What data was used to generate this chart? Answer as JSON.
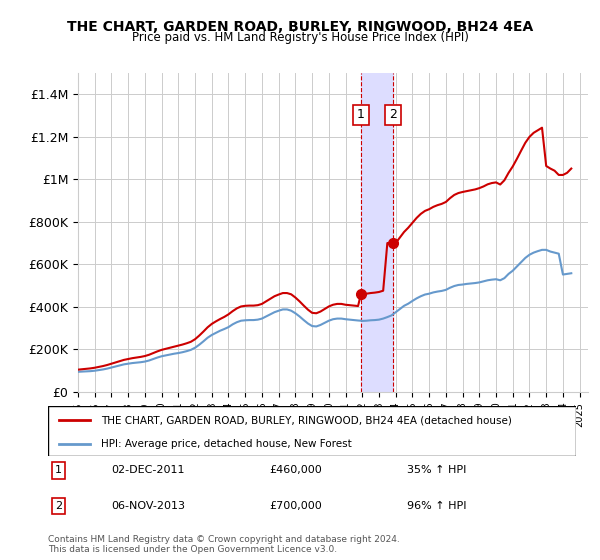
{
  "title": "THE CHART, GARDEN ROAD, BURLEY, RINGWOOD, BH24 4EA",
  "subtitle": "Price paid vs. HM Land Registry's House Price Index (HPI)",
  "ylim": [
    0,
    1500000
  ],
  "yticks": [
    0,
    200000,
    400000,
    600000,
    800000,
    1000000,
    1200000,
    1400000
  ],
  "ytick_labels": [
    "£0",
    "£200K",
    "£400K",
    "£600K",
    "£800K",
    "£1M",
    "£1.2M",
    "£1.4M"
  ],
  "x_start_year": 1995,
  "x_end_year": 2025,
  "sale_dates": [
    "2011-12-02",
    "2013-11-06"
  ],
  "sale_prices": [
    460000,
    700000
  ],
  "sale_labels": [
    "1",
    "2"
  ],
  "legend_red": "THE CHART, GARDEN ROAD, BURLEY, RINGWOOD, BH24 4EA (detached house)",
  "legend_blue": "HPI: Average price, detached house, New Forest",
  "annotation_1": "02-DEC-2011",
  "annotation_1_price": "£460,000",
  "annotation_1_hpi": "35% ↑ HPI",
  "annotation_2": "06-NOV-2013",
  "annotation_2_price": "£700,000",
  "annotation_2_hpi": "96% ↑ HPI",
  "footnote": "Contains HM Land Registry data © Crown copyright and database right 2024.\nThis data is licensed under the Open Government Licence v3.0.",
  "red_line_color": "#cc0000",
  "blue_line_color": "#6699cc",
  "highlight_color": "#ddddff",
  "grid_color": "#cccccc",
  "hpi_data_x": [
    1995.0,
    1995.25,
    1995.5,
    1995.75,
    1996.0,
    1996.25,
    1996.5,
    1996.75,
    1997.0,
    1997.25,
    1997.5,
    1997.75,
    1998.0,
    1998.25,
    1998.5,
    1998.75,
    1999.0,
    1999.25,
    1999.5,
    1999.75,
    2000.0,
    2000.25,
    2000.5,
    2000.75,
    2001.0,
    2001.25,
    2001.5,
    2001.75,
    2002.0,
    2002.25,
    2002.5,
    2002.75,
    2003.0,
    2003.25,
    2003.5,
    2003.75,
    2004.0,
    2004.25,
    2004.5,
    2004.75,
    2005.0,
    2005.25,
    2005.5,
    2005.75,
    2006.0,
    2006.25,
    2006.5,
    2006.75,
    2007.0,
    2007.25,
    2007.5,
    2007.75,
    2008.0,
    2008.25,
    2008.5,
    2008.75,
    2009.0,
    2009.25,
    2009.5,
    2009.75,
    2010.0,
    2010.25,
    2010.5,
    2010.75,
    2011.0,
    2011.25,
    2011.5,
    2011.75,
    2011.917,
    2012.0,
    2012.25,
    2012.5,
    2012.75,
    2013.0,
    2013.25,
    2013.5,
    2013.75,
    2013.833,
    2014.0,
    2014.25,
    2014.5,
    2014.75,
    2015.0,
    2015.25,
    2015.5,
    2015.75,
    2016.0,
    2016.25,
    2016.5,
    2016.75,
    2017.0,
    2017.25,
    2017.5,
    2017.75,
    2018.0,
    2018.25,
    2018.5,
    2018.75,
    2019.0,
    2019.25,
    2019.5,
    2019.75,
    2020.0,
    2020.25,
    2020.5,
    2020.75,
    2021.0,
    2021.25,
    2021.5,
    2021.75,
    2022.0,
    2022.25,
    2022.5,
    2022.75,
    2023.0,
    2023.25,
    2023.5,
    2023.75,
    2024.0,
    2024.25,
    2024.5
  ],
  "hpi_data_y": [
    95000,
    96000,
    97000,
    98000,
    100000,
    103000,
    106000,
    110000,
    115000,
    120000,
    125000,
    130000,
    133000,
    136000,
    138000,
    140000,
    143000,
    148000,
    155000,
    162000,
    168000,
    172000,
    176000,
    180000,
    183000,
    187000,
    192000,
    198000,
    208000,
    222000,
    238000,
    255000,
    268000,
    278000,
    288000,
    296000,
    305000,
    318000,
    328000,
    335000,
    337000,
    338000,
    338000,
    340000,
    345000,
    355000,
    365000,
    375000,
    382000,
    388000,
    388000,
    382000,
    370000,
    355000,
    338000,
    322000,
    310000,
    308000,
    315000,
    325000,
    335000,
    342000,
    345000,
    345000,
    342000,
    340000,
    338000,
    336000,
    335000,
    334000,
    335000,
    337000,
    338000,
    340000,
    345000,
    352000,
    360000,
    365000,
    375000,
    390000,
    405000,
    415000,
    428000,
    440000,
    450000,
    458000,
    462000,
    468000,
    472000,
    475000,
    480000,
    490000,
    498000,
    503000,
    505000,
    508000,
    510000,
    512000,
    515000,
    520000,
    525000,
    528000,
    530000,
    525000,
    535000,
    555000,
    570000,
    590000,
    610000,
    630000,
    645000,
    655000,
    662000,
    668000,
    668000,
    660000,
    655000,
    650000,
    552000,
    555000,
    558000
  ],
  "red_line_x": [
    1995.0,
    1995.25,
    1995.5,
    1995.75,
    1996.0,
    1996.25,
    1996.5,
    1996.75,
    1997.0,
    1997.25,
    1997.5,
    1997.75,
    1998.0,
    1998.25,
    1998.5,
    1998.75,
    1999.0,
    1999.25,
    1999.5,
    1999.75,
    2000.0,
    2000.25,
    2000.5,
    2000.75,
    2001.0,
    2001.25,
    2001.5,
    2001.75,
    2002.0,
    2002.25,
    2002.5,
    2002.75,
    2003.0,
    2003.25,
    2003.5,
    2003.75,
    2004.0,
    2004.25,
    2004.5,
    2004.75,
    2005.0,
    2005.25,
    2005.5,
    2005.75,
    2006.0,
    2006.25,
    2006.5,
    2006.75,
    2007.0,
    2007.25,
    2007.5,
    2007.75,
    2008.0,
    2008.25,
    2008.5,
    2008.75,
    2009.0,
    2009.25,
    2009.5,
    2009.75,
    2010.0,
    2010.25,
    2010.5,
    2010.75,
    2011.0,
    2011.25,
    2011.5,
    2011.75,
    2011.917,
    2012.0,
    2012.25,
    2012.5,
    2012.75,
    2013.0,
    2013.25,
    2013.5,
    2013.75,
    2013.833,
    2014.0,
    2014.25,
    2014.5,
    2014.75,
    2015.0,
    2015.25,
    2015.5,
    2015.75,
    2016.0,
    2016.25,
    2016.5,
    2016.75,
    2017.0,
    2017.25,
    2017.5,
    2017.75,
    2018.0,
    2018.25,
    2018.5,
    2018.75,
    2019.0,
    2019.25,
    2019.5,
    2019.75,
    2020.0,
    2020.25,
    2020.5,
    2020.75,
    2021.0,
    2021.25,
    2021.5,
    2021.75,
    2022.0,
    2022.25,
    2022.5,
    2022.75,
    2023.0,
    2023.25,
    2023.5,
    2023.75,
    2024.0,
    2024.25,
    2024.5
  ],
  "red_line_y": [
    105000,
    107000,
    109000,
    111000,
    114000,
    118000,
    122000,
    127000,
    133000,
    139000,
    145000,
    151000,
    155000,
    159000,
    162000,
    165000,
    169000,
    175000,
    183000,
    191000,
    198000,
    203000,
    208000,
    213000,
    218000,
    223000,
    229000,
    236000,
    248000,
    265000,
    284000,
    304000,
    320000,
    332000,
    343000,
    353000,
    365000,
    380000,
    393000,
    402000,
    405000,
    406000,
    406000,
    408000,
    414000,
    426000,
    438000,
    450000,
    458000,
    465000,
    465000,
    459000,
    444000,
    426000,
    406000,
    387000,
    372000,
    370000,
    378000,
    390000,
    402000,
    410000,
    414000,
    414000,
    410000,
    408000,
    406000,
    404000,
    460000,
    460000,
    462000,
    465000,
    467000,
    470000,
    476000,
    700000,
    700000,
    700000,
    700000,
    726000,
    752000,
    772000,
    795000,
    818000,
    837000,
    851000,
    859000,
    870000,
    878000,
    884000,
    893000,
    911000,
    926000,
    935000,
    940000,
    944000,
    948000,
    952000,
    958000,
    966000,
    976000,
    982000,
    985000,
    975000,
    995000,
    1030000,
    1060000,
    1096000,
    1134000,
    1171000,
    1199000,
    1218000,
    1230000,
    1242000,
    1062000,
    1050000,
    1040000,
    1020000,
    1020000,
    1030000,
    1050000
  ]
}
